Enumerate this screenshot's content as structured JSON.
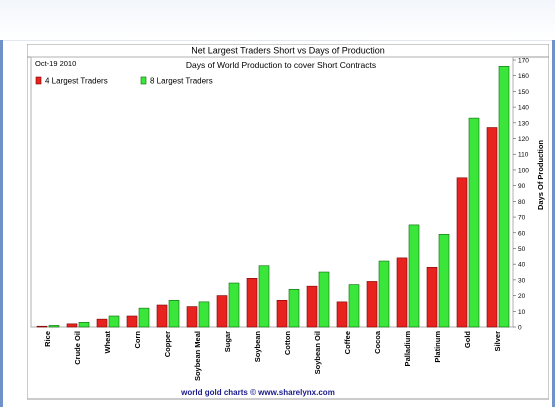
{
  "chart_data": {
    "type": "bar",
    "title": "Net Largest Traders Short vs Days of Production",
    "subtitle": "Days of World Production to cover Short Contracts",
    "date_label": "Oct-19 2010",
    "ylabel": "Days Of Production",
    "ylim": [
      0,
      170
    ],
    "ytick_step": 10,
    "grid": false,
    "legend_position": "top-left",
    "footer": "world gold charts © www.sharelynx.com",
    "categories": [
      "Rice",
      "Crude Oil",
      "Wheat",
      "Corn",
      "Copper",
      "Soybean Meal",
      "Sugar",
      "Soybean",
      "Cotton",
      "Soybean Oil",
      "Coffee",
      "Cocoa",
      "Palladium",
      "Platinum",
      "Gold",
      "Silver"
    ],
    "series": [
      {
        "name": "4 Largest Traders",
        "color": "#e8231f",
        "values": [
          0.5,
          2,
          5,
          7,
          14,
          13,
          20,
          31,
          17,
          26,
          16,
          29,
          44,
          38,
          95,
          127
        ]
      },
      {
        "name": "8 Largest Traders",
        "color": "#3be63b",
        "values": [
          1,
          3,
          7,
          12,
          17,
          16,
          28,
          39,
          24,
          35,
          27,
          42,
          65,
          59,
          133,
          166
        ]
      }
    ]
  }
}
